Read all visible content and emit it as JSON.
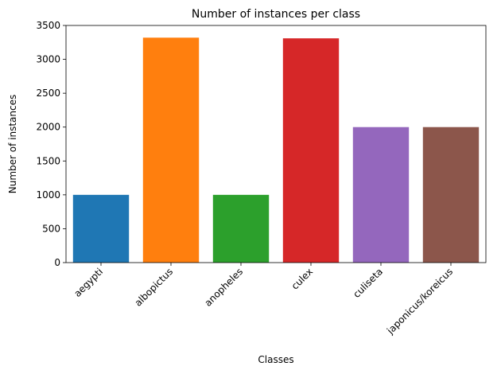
{
  "chart_data": {
    "type": "bar",
    "title": "Number of instances per class",
    "xlabel": "Classes",
    "ylabel": "Number of instances",
    "categories": [
      "aegypti",
      "albopictus",
      "anopheles",
      "culex",
      "culiseta",
      "japonicus/koreicus"
    ],
    "values": [
      1000,
      3320,
      1000,
      3310,
      2000,
      2000
    ],
    "colors": [
      "#1f77b4",
      "#ff7f0e",
      "#2ca02c",
      "#d62728",
      "#9467bd",
      "#8c564b"
    ],
    "ylim": [
      0,
      3500
    ],
    "yticks": [
      0,
      500,
      1000,
      1500,
      2000,
      2500,
      3000,
      3500
    ],
    "grid": false,
    "xtick_rotation": 45
  }
}
